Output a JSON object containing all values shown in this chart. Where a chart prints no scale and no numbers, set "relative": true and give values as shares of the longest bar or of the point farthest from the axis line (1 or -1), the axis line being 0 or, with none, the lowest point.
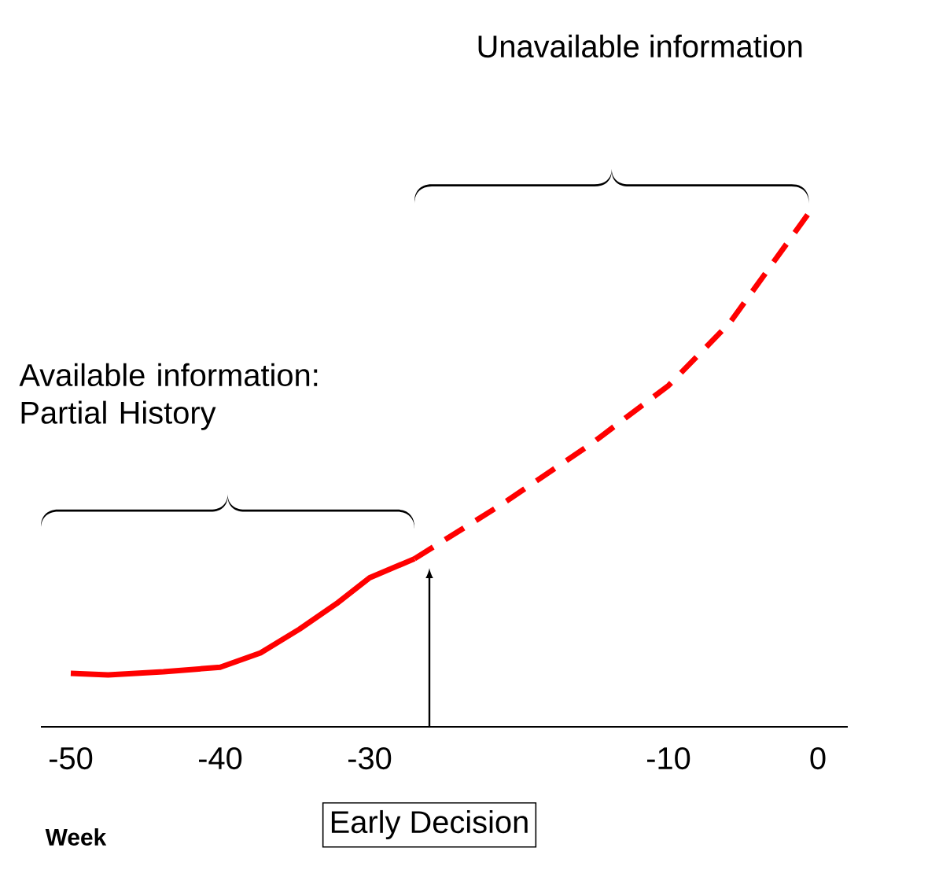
{
  "chart_data": {
    "type": "line",
    "relative": true,
    "xlabel": "Week",
    "xlim": [
      -52,
      2
    ],
    "xticks": [
      -50,
      -40,
      -30,
      -10,
      0
    ],
    "series": [
      {
        "color": "#ff0000",
        "line_style": "solid",
        "x": [
          -50,
          -47.5,
          -43.8,
          -40,
          -37.3,
          -34.7,
          -32.2,
          -30,
          -27
        ],
        "values": [
          0.104,
          0.101,
          0.107,
          0.116,
          0.144,
          0.19,
          0.24,
          0.29,
          0.327
        ]
      },
      {
        "color": "#ff0000",
        "line_style": "dashed",
        "x": [
          -27,
          -21.1,
          -15.2,
          -10,
          -5.9,
          -0.6
        ],
        "values": [
          0.327,
          0.434,
          0.55,
          0.664,
          0.786,
          1.0
        ]
      }
    ],
    "annotations": [
      "Available information: Partial History",
      "Unavailable information",
      "Early Decision"
    ]
  }
}
